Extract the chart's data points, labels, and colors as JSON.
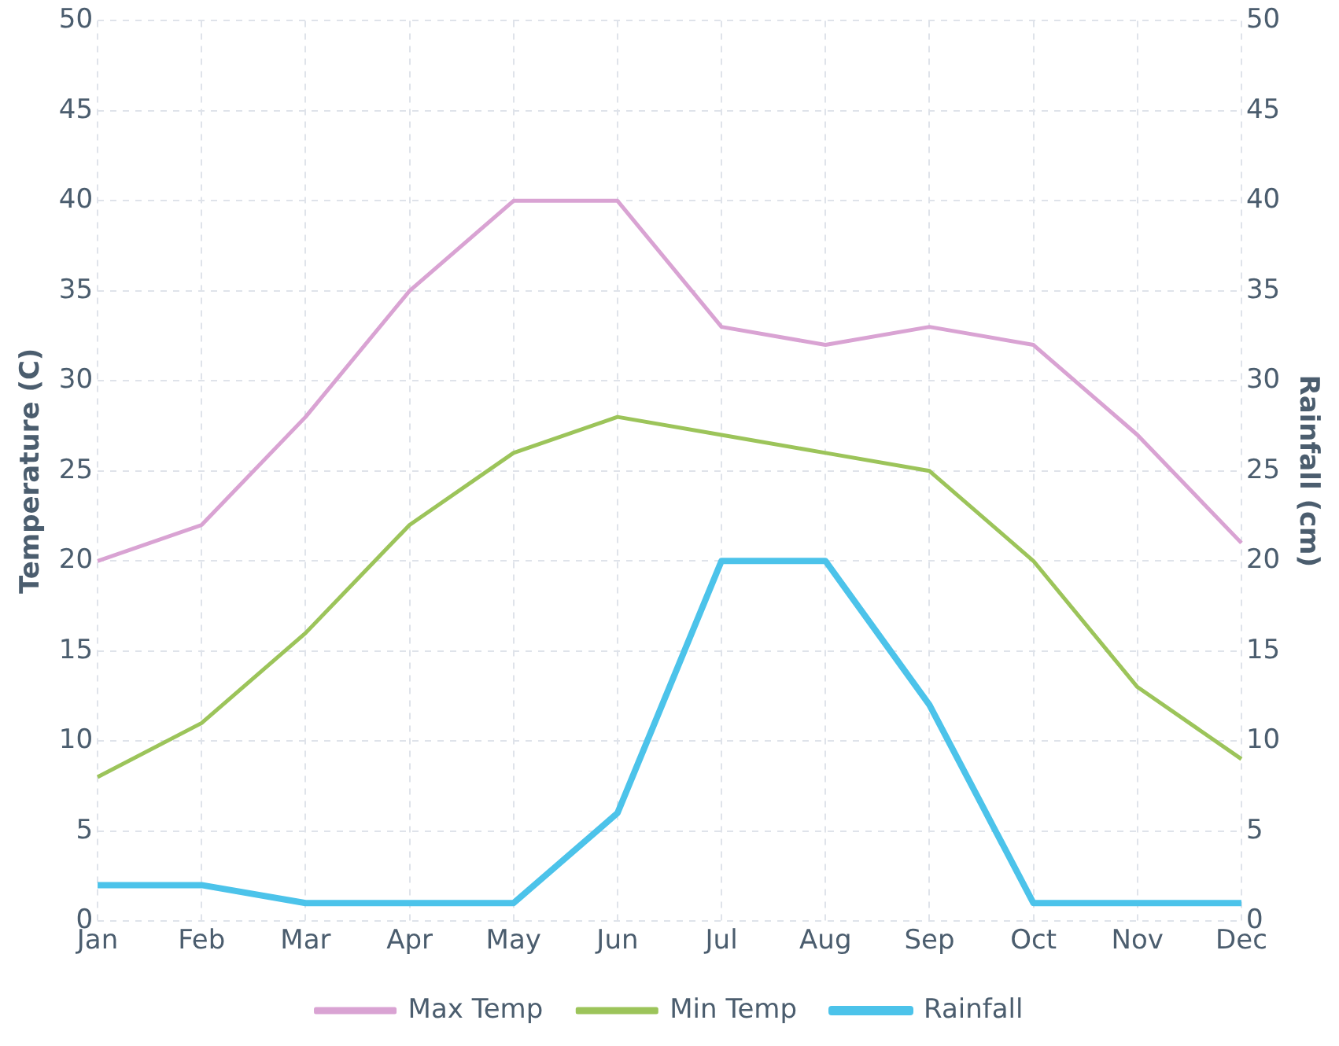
{
  "chart_data": {
    "type": "line",
    "ylabel": "Temperature (C)",
    "y2label": "Rainfall (cm)",
    "categories": [
      "Jan",
      "Feb",
      "Mar",
      "Apr",
      "May",
      "Jun",
      "Jul",
      "Aug",
      "Sep",
      "Oct",
      "Nov",
      "Dec"
    ],
    "series": [
      {
        "name": "Max Temp",
        "color": "#d9a3d3",
        "values": [
          20,
          22,
          28,
          35,
          40,
          40,
          33,
          32,
          33,
          32,
          27,
          21
        ]
      },
      {
        "name": "Min Temp",
        "color": "#9cc45a",
        "values": [
          8,
          11,
          16,
          22,
          26,
          28,
          27,
          26,
          25,
          20,
          13,
          9
        ]
      },
      {
        "name": "Rainfall",
        "color": "#4cc3ea",
        "axis": "y2",
        "values": [
          2,
          2,
          1,
          1,
          1,
          6,
          20,
          20,
          12,
          1,
          1,
          1
        ]
      }
    ],
    "ylim": [
      0,
      50
    ],
    "yticks": [
      0,
      5,
      10,
      15,
      20,
      25,
      30,
      35,
      40,
      45,
      50
    ],
    "y2lim": [
      0,
      50
    ],
    "y2ticks": [
      0,
      5,
      10,
      15,
      20,
      25,
      30,
      35,
      40,
      45,
      50
    ],
    "grid": true,
    "legend": "bottom",
    "marker": "none",
    "line_style": "solid"
  }
}
